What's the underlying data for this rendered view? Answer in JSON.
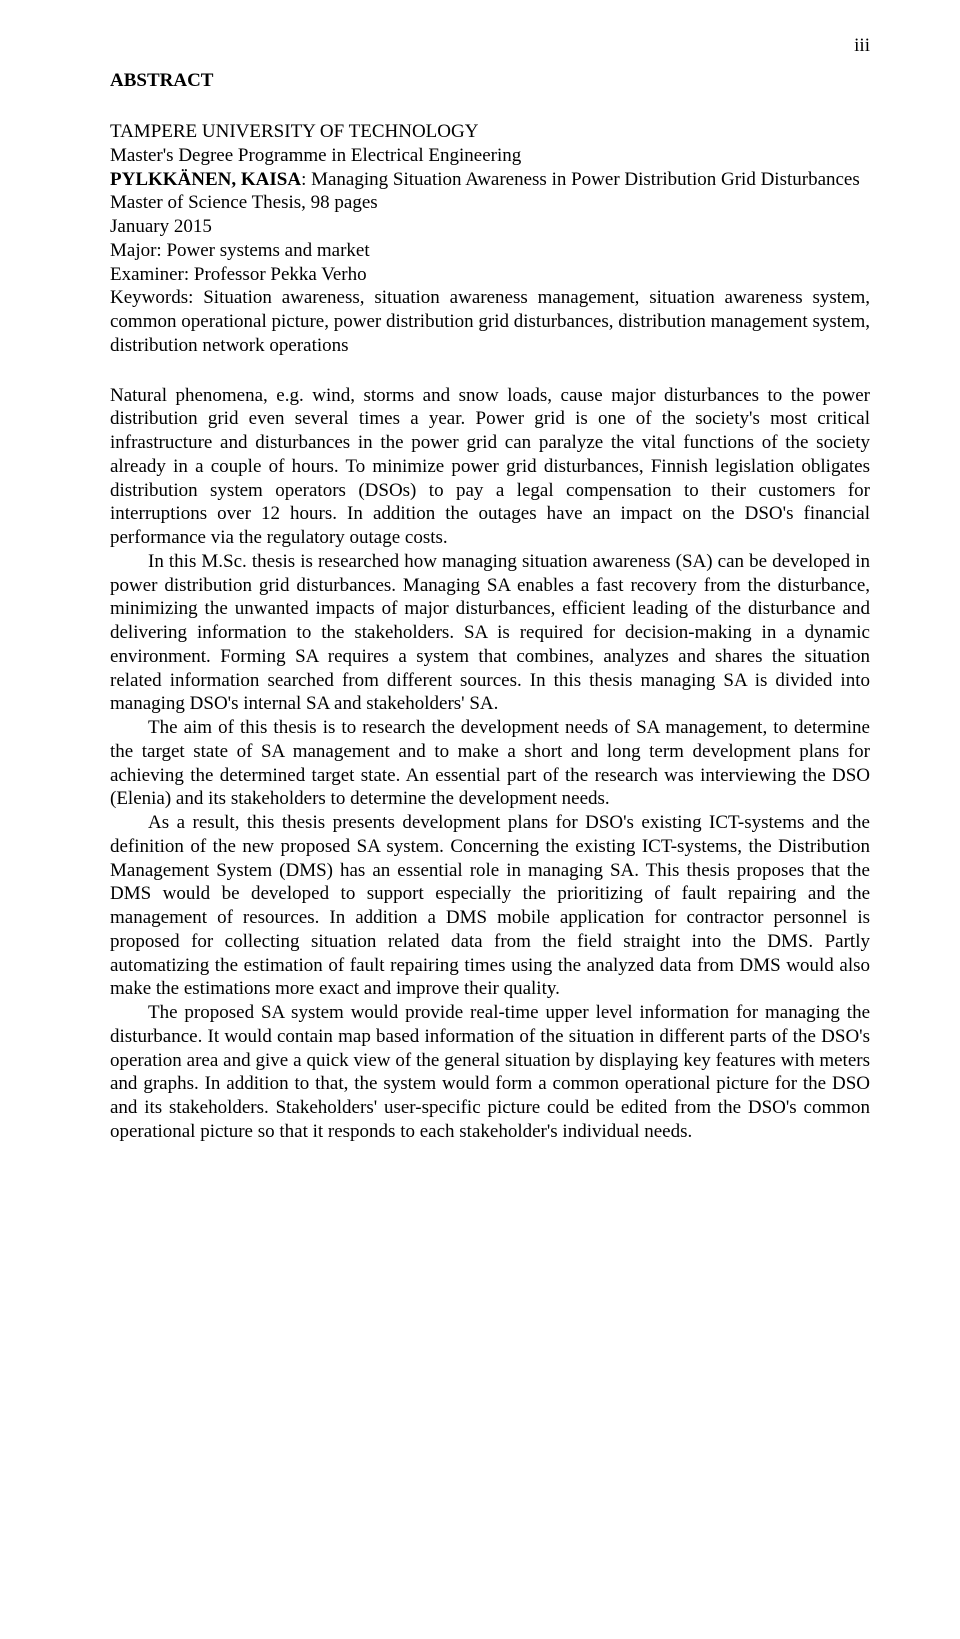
{
  "page_number": "iii",
  "heading": "ABSTRACT",
  "meta": {
    "university": "TAMPERE UNIVERSITY OF TECHNOLOGY",
    "programme": "Master's Degree Programme in Electrical Engineering",
    "author_name": "PYLKKÄNEN, KAISA",
    "title": ": Managing Situation Awareness in Power Distribution Grid Disturbances",
    "thesis": "Master of Science Thesis, 98 pages",
    "date": "January 2015",
    "major": "Major: Power systems and market",
    "examiner": "Examiner: Professor Pekka Verho",
    "keywords": "Keywords: Situation awareness, situation awareness management, situation awareness system, common operational picture, power distribution grid disturbances, distribution management system, distribution network operations"
  },
  "paragraphs": {
    "p1": "Natural phenomena, e.g. wind, storms and snow loads, cause major disturbances to the power distribution grid even several times a year. Power grid is one of the society's most critical infrastructure and disturbances in the power grid can paralyze the vital functions of the society already in a couple of hours. To minimize power grid disturbances, Finnish legislation obligates distribution system operators (DSOs) to pay a legal compensation to their customers for interruptions over 12 hours. In addition the outages have an impact on the DSO's financial performance via the regulatory outage costs.",
    "p2": "In this M.Sc. thesis is researched how managing situation awareness (SA) can be developed in power distribution grid disturbances. Managing SA enables a fast recovery from the disturbance, minimizing the unwanted impacts of major disturbances, efficient leading of the disturbance and delivering information to the stakeholders. SA is required for decision-making in a dynamic environment. Forming SA requires a system that combines, analyzes and shares the situation related information searched from different sources. In this thesis managing SA is divided into managing DSO's internal SA and stakeholders' SA.",
    "p3": "The aim of this thesis is to research the development needs of SA management, to determine the target state of SA management and to make a short and long term development plans for achieving the determined target state. An essential part of the research was interviewing the DSO (Elenia) and its stakeholders to determine the development needs.",
    "p4": "As a result, this thesis presents development plans for DSO's existing ICT-systems and the definition of the new proposed SA system. Concerning the existing ICT-systems, the Distribution Management System (DMS) has an essential role in managing SA. This thesis proposes that the DMS would be developed to support especially the prioritizing of fault repairing and the management of resources. In addition a DMS mobile application for contractor personnel is proposed for collecting situation related data from the field straight into the DMS. Partly automatizing the estimation of fault repairing times using the analyzed data from DMS would also make the estimations more exact and improve their quality.",
    "p5": "The proposed SA system would provide real-time upper level information for managing the disturbance. It would contain map based information of the situation in different parts of the DSO's operation area and give a quick view of the general situation by displaying key features with meters and graphs. In addition to that, the system would form a common operational picture for the DSO and its stakeholders. Stakeholders' user-specific picture could be edited from the DSO's common operational picture so that it responds to each stakeholder's individual needs."
  }
}
